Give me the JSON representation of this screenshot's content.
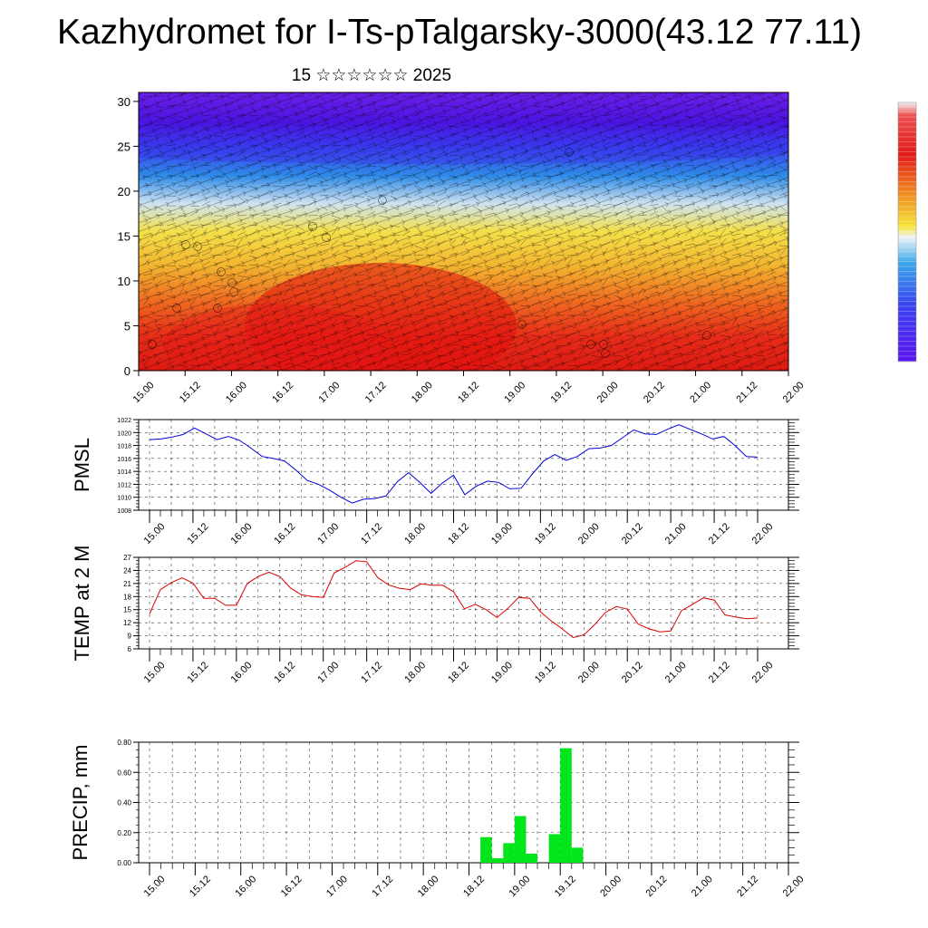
{
  "title": "Kazhydromet for I-Ts-pTalgarsky-3000(43.12 77.11)",
  "subtitle": "15 ☆☆☆☆☆☆ 2025",
  "chart_data": [
    {
      "type": "heatmap",
      "name": "vertical-profile",
      "x_tick_labels": [
        "15.00",
        "15.12",
        "16.00",
        "16.12",
        "17.00",
        "17.12",
        "18.00",
        "18.12",
        "19.00",
        "19.12",
        "20.00",
        "20.12",
        "21.00",
        "21.12",
        "22.00"
      ],
      "y_ticks": [
        0,
        5,
        10,
        15,
        20,
        25,
        30
      ],
      "ylim": [
        0,
        31
      ],
      "colorbar": [
        "#f0f0f0",
        "#e62a2a",
        "#e0ce00",
        "#e5f0f5",
        "#2ea0e8",
        "#4a16ee"
      ]
    },
    {
      "type": "line",
      "ylabel": "PMSL",
      "color": "#0000dd",
      "ylim": [
        1008,
        1022
      ],
      "y_ticks": [
        1008,
        1010,
        1012,
        1014,
        1016,
        1018,
        1020,
        1022
      ],
      "x_tick_labels": [
        "15.00",
        "15.12",
        "16.00",
        "16.12",
        "17.00",
        "17.12",
        "18.00",
        "18.12",
        "19.00",
        "19.12",
        "20.00",
        "20.12",
        "21.00",
        "21.12",
        "22.00"
      ],
      "values": [
        1018.9,
        1019.0,
        1019.3,
        1019.7,
        1020.7,
        1019.8,
        1018.9,
        1019.4,
        1018.8,
        1017.6,
        1016.3,
        1016.0,
        1015.6,
        1014.2,
        1012.6,
        1012.0,
        1011.1,
        1010.0,
        1009.1,
        1009.7,
        1009.8,
        1010.2,
        1012.4,
        1013.8,
        1012.3,
        1010.6,
        1012.2,
        1013.4,
        1010.4,
        1011.7,
        1012.5,
        1012.3,
        1011.3,
        1011.4,
        1013.6,
        1015.6,
        1016.6,
        1015.7,
        1016.3,
        1017.5,
        1017.6,
        1018.0,
        1019.2,
        1020.4,
        1019.8,
        1019.7,
        1020.5,
        1021.2,
        1020.5,
        1019.8,
        1019.0,
        1019.4,
        1018.0,
        1016.3,
        1016.2
      ]
    },
    {
      "type": "line",
      "ylabel": "TEMP at 2 M",
      "color": "#dd0000",
      "ylim": [
        6,
        27
      ],
      "y_ticks": [
        6,
        9,
        12,
        15,
        18,
        21,
        24,
        27
      ],
      "x_tick_labels": [
        "15.00",
        "15.12",
        "16.00",
        "16.12",
        "17.00",
        "17.12",
        "18.00",
        "18.12",
        "19.00",
        "19.12",
        "20.00",
        "20.12",
        "21.00",
        "21.12",
        "22.00"
      ],
      "values": [
        14.0,
        19.6,
        21.2,
        22.3,
        21.1,
        17.6,
        17.6,
        16.0,
        16.0,
        21.0,
        22.6,
        23.6,
        22.6,
        19.9,
        18.4,
        18.0,
        17.8,
        23.4,
        24.7,
        26.2,
        26.0,
        22.4,
        20.7,
        19.9,
        19.6,
        20.9,
        20.6,
        20.6,
        19.1,
        15.2,
        16.2,
        15.0,
        13.2,
        15.3,
        17.8,
        17.6,
        14.5,
        12.4,
        10.6,
        8.6,
        9.2,
        11.6,
        14.4,
        15.7,
        15.1,
        11.7,
        10.6,
        9.9,
        10.1,
        14.8,
        16.2,
        17.7,
        17.2,
        13.8,
        13.3,
        12.9,
        13.1
      ]
    },
    {
      "type": "bar",
      "ylabel": "PRECIP, mm",
      "color": "#00e61a",
      "ylim": [
        0,
        0.8
      ],
      "y_tick_labels": [
        "0.00",
        "0.20",
        "0.40",
        "0.60",
        "0.80"
      ],
      "x_tick_labels": [
        "15.00",
        "15.12",
        "16.00",
        "16.12",
        "17.00",
        "17.12",
        "18.00",
        "18.12",
        "19.00",
        "19.12",
        "20.00",
        "20.12",
        "21.00",
        "21.12",
        "22.00"
      ],
      "bars": [
        {
          "index": 29,
          "value": 0.17
        },
        {
          "index": 30,
          "value": 0.03
        },
        {
          "index": 31,
          "value": 0.13
        },
        {
          "index": 32,
          "value": 0.31
        },
        {
          "index": 33,
          "value": 0.06
        },
        {
          "index": 35,
          "value": 0.19
        },
        {
          "index": 36,
          "value": 0.76
        },
        {
          "index": 37,
          "value": 0.1
        }
      ]
    }
  ]
}
